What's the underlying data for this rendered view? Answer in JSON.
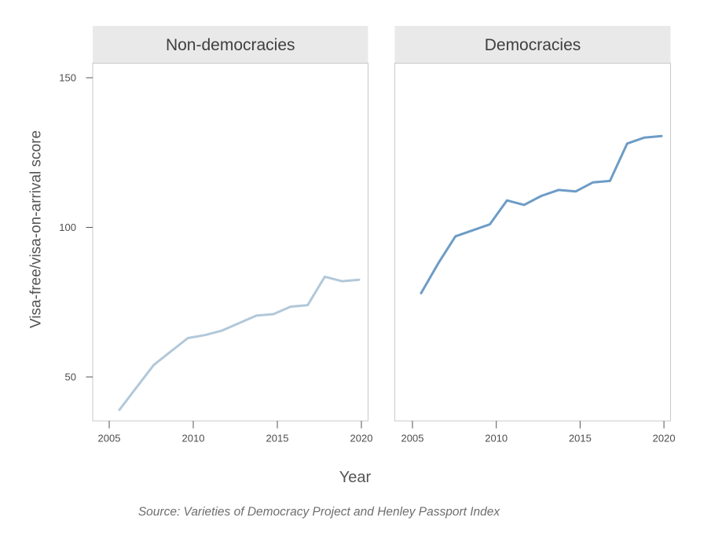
{
  "chart_data": {
    "type": "line",
    "title": "",
    "xlabel": "Year",
    "ylabel": "Visa-free/visa-on-arrival score",
    "source_note": "Source: Varieties of Democracy Project and Henley Passport Index",
    "facet_labels": [
      "Non-democracies",
      "Democracies"
    ],
    "x": [
      2006,
      2007,
      2008,
      2009,
      2010,
      2011,
      2012,
      2013,
      2014,
      2015,
      2016,
      2017,
      2018,
      2019,
      2020
    ],
    "series": [
      {
        "name": "Non-democracies",
        "color": "#b2c8d9",
        "values": [
          39,
          46.5,
          54,
          58.5,
          63,
          64,
          65.5,
          68,
          70.5,
          71,
          73.5,
          74,
          83.5,
          82,
          82.5
        ]
      },
      {
        "name": "Democracies",
        "color": "#6d9cc6",
        "values": [
          78,
          88,
          97,
          99,
          101,
          109,
          107.5,
          110.5,
          112.5,
          112,
          115,
          115.5,
          128,
          130,
          130.5
        ]
      }
    ],
    "x_ticks": [
      "2005",
      "2010",
      "2015",
      "2020"
    ],
    "y_ticks": [
      "50",
      "100",
      "150"
    ],
    "ylim": [
      36,
      156
    ],
    "grid": "off",
    "legend": "none",
    "colors": {
      "background": "#ffffff",
      "strip_bg": "#e9e9e9",
      "strip_text": "#3f3f3f",
      "panel_bg": "#ffffff",
      "panel_border": "#c9c9c9",
      "tick_mark": "#555555",
      "tick_label": "#4d4d4d",
      "axis_title": "#555555",
      "source_text": "#6e6e6e"
    }
  }
}
